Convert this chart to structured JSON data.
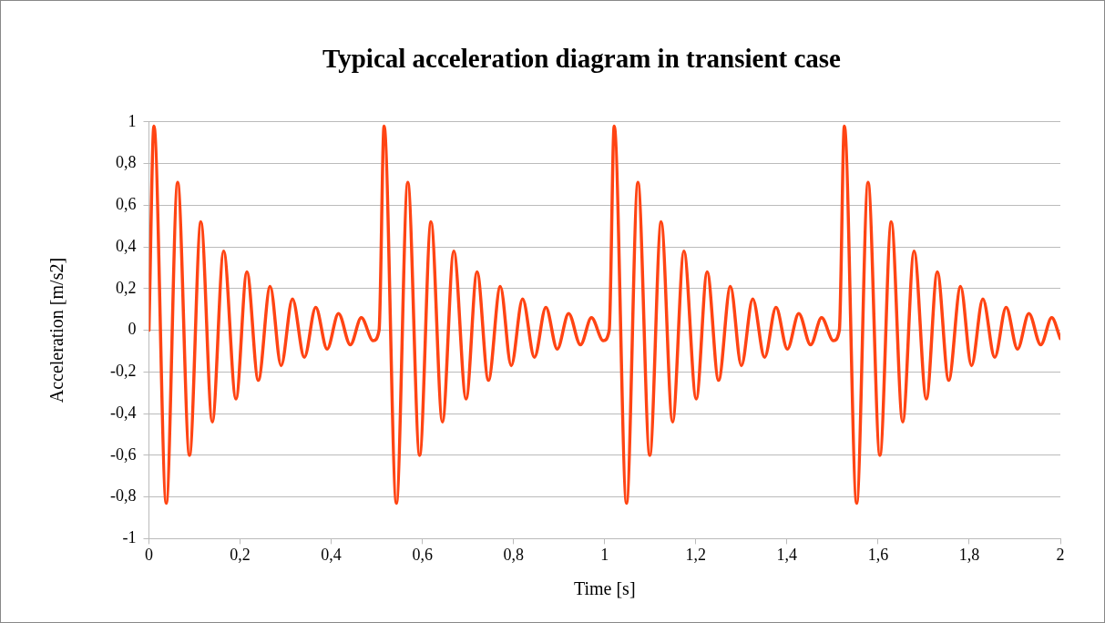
{
  "chart_data": {
    "type": "line",
    "title": "Typical acceleration diagram in transient case",
    "xlabel": "Time [s]",
    "ylabel": "Acceleration [m/s2]",
    "xlim": [
      0,
      2
    ],
    "ylim": [
      -1,
      1
    ],
    "xticks": [
      0,
      {
        "value": 0.2,
        "label": "0,2"
      },
      {
        "value": 0.4,
        "label": "0,4"
      },
      {
        "value": 0.6,
        "label": "0,6"
      },
      {
        "value": 0.8,
        "label": "0,8"
      },
      1,
      {
        "value": 1.2,
        "label": "1,2"
      },
      {
        "value": 1.4,
        "label": "1,4"
      },
      {
        "value": 1.6,
        "label": "1,6"
      },
      {
        "value": 1.8,
        "label": "1,8"
      },
      2
    ],
    "yticks": [
      -1,
      {
        "value": -0.8,
        "label": "-0,8"
      },
      {
        "value": -0.6,
        "label": "-0,6"
      },
      {
        "value": -0.4,
        "label": "-0,4"
      },
      {
        "value": -0.2,
        "label": "-0,2"
      },
      0,
      {
        "value": 0.2,
        "label": "0,2"
      },
      {
        "value": 0.4,
        "label": "0,4"
      },
      {
        "value": 0.6,
        "label": "0,6"
      },
      {
        "value": 0.8,
        "label": "0,8"
      },
      1
    ],
    "grid": "y",
    "legend": false,
    "marker": "none",
    "line_style": "solid",
    "series": [
      {
        "color": "#ff4413",
        "x": [
          0,
          0.011,
          0.038,
          0.063,
          0.089,
          0.114,
          0.139,
          0.164,
          0.191,
          0.215,
          0.24,
          0.266,
          0.29,
          0.315,
          0.341,
          0.366,
          0.391,
          0.416,
          0.442,
          0.466,
          0.492,
          0.505,
          0.516,
          0.543,
          0.568,
          0.594,
          0.619,
          0.644,
          0.669,
          0.696,
          0.72,
          0.745,
          0.771,
          0.795,
          0.82,
          0.846,
          0.871,
          0.896,
          0.921,
          0.947,
          0.971,
          0.997,
          1.01,
          1.021,
          1.048,
          1.073,
          1.099,
          1.124,
          1.149,
          1.174,
          1.201,
          1.225,
          1.25,
          1.276,
          1.3,
          1.325,
          1.351,
          1.376,
          1.401,
          1.426,
          1.452,
          1.476,
          1.502,
          1.515,
          1.526,
          1.553,
          1.578,
          1.604,
          1.629,
          1.654,
          1.679,
          1.706,
          1.73,
          1.755,
          1.781,
          1.805,
          1.83,
          1.856,
          1.881,
          1.906,
          1.931,
          1.957,
          1.981,
          2.0
        ],
        "values": [
          0,
          0.98,
          -0.83,
          0.71,
          -0.6,
          0.52,
          -0.44,
          0.38,
          -0.33,
          0.28,
          -0.24,
          0.21,
          -0.17,
          0.15,
          -0.13,
          0.11,
          -0.09,
          0.08,
          -0.07,
          0.06,
          -0.05,
          0,
          0.98,
          -0.83,
          0.71,
          -0.6,
          0.52,
          -0.44,
          0.38,
          -0.33,
          0.28,
          -0.24,
          0.21,
          -0.17,
          0.15,
          -0.13,
          0.11,
          -0.09,
          0.08,
          -0.07,
          0.06,
          -0.05,
          0,
          0.98,
          -0.83,
          0.71,
          -0.6,
          0.52,
          -0.44,
          0.38,
          -0.33,
          0.28,
          -0.24,
          0.21,
          -0.17,
          0.15,
          -0.13,
          0.11,
          -0.09,
          0.08,
          -0.07,
          0.06,
          -0.05,
          0,
          0.98,
          -0.83,
          0.71,
          -0.6,
          0.52,
          -0.44,
          0.38,
          -0.33,
          0.28,
          -0.24,
          0.21,
          -0.17,
          0.15,
          -0.13,
          0.11,
          -0.09,
          0.08,
          -0.07,
          0.06,
          -0.04
        ]
      }
    ]
  }
}
